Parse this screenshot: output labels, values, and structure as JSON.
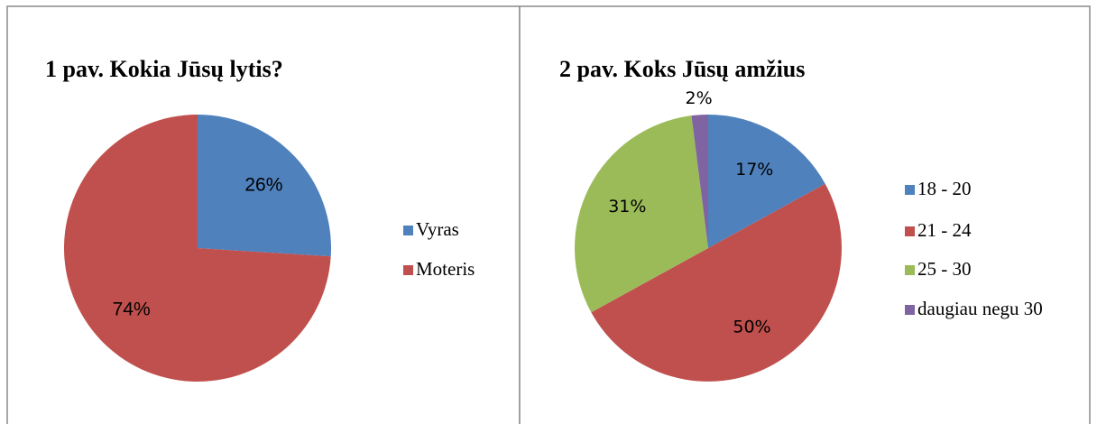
{
  "chart_data": [
    {
      "type": "pie",
      "title": "1 pav. Kokia Jūsų lytis?",
      "categories": [
        "Vyras",
        "Moteris"
      ],
      "values": [
        26,
        74
      ],
      "value_labels": [
        "26%",
        "74%"
      ],
      "colors": [
        "#4f81bd",
        "#c0504d"
      ],
      "legend": "right"
    },
    {
      "type": "pie",
      "title": "2 pav. Koks Jūsų amžius",
      "categories": [
        "18 - 20",
        "21 - 24",
        "25 - 30",
        "daugiau negu 30"
      ],
      "values": [
        17,
        50,
        31,
        2
      ],
      "value_labels": [
        "17%",
        "50%",
        "31%",
        "2%"
      ],
      "colors": [
        "#4f81bd",
        "#c0504d",
        "#9bbb59",
        "#8064a2"
      ],
      "legend": "right"
    }
  ]
}
